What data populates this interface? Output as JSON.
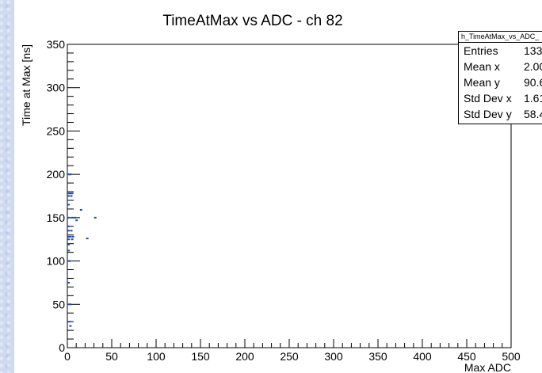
{
  "chart_data": {
    "type": "scatter",
    "title": "TimeAtMax vs ADC - ch 82",
    "xlabel": "Max ADC",
    "ylabel": "Time at Max [ns]",
    "xlim": [
      0,
      500
    ],
    "ylim": [
      0,
      350
    ],
    "x_ticks": [
      0,
      50,
      100,
      150,
      200,
      250,
      300,
      350,
      400,
      450,
      500
    ],
    "y_ticks": [
      0,
      50,
      100,
      150,
      200,
      250,
      300,
      350
    ],
    "grid": false,
    "marker_color": "#1f4fa8",
    "points": [
      {
        "x": 1,
        "y": 200
      },
      {
        "x": 2,
        "y": 200
      },
      {
        "x": 3,
        "y": 200
      },
      {
        "x": 1,
        "y": 178
      },
      {
        "x": 3,
        "y": 178
      },
      {
        "x": 5,
        "y": 178
      },
      {
        "x": 1,
        "y": 175
      },
      {
        "x": 4,
        "y": 175
      },
      {
        "x": 1,
        "y": 165
      },
      {
        "x": 15,
        "y": 159
      },
      {
        "x": 1,
        "y": 150
      },
      {
        "x": 5,
        "y": 150
      },
      {
        "x": 8,
        "y": 150
      },
      {
        "x": 31,
        "y": 150
      },
      {
        "x": 10,
        "y": 147
      },
      {
        "x": 1,
        "y": 140
      },
      {
        "x": 1,
        "y": 135
      },
      {
        "x": 4,
        "y": 135
      },
      {
        "x": 1,
        "y": 128
      },
      {
        "x": 3,
        "y": 128
      },
      {
        "x": 6,
        "y": 128
      },
      {
        "x": 1,
        "y": 125
      },
      {
        "x": 5,
        "y": 125
      },
      {
        "x": 22,
        "y": 126
      },
      {
        "x": 1,
        "y": 119
      },
      {
        "x": 1,
        "y": 112
      },
      {
        "x": 1,
        "y": 100
      },
      {
        "x": 2,
        "y": 100
      },
      {
        "x": 1,
        "y": 75
      },
      {
        "x": 1,
        "y": 50
      },
      {
        "x": 3,
        "y": 50
      },
      {
        "x": 2,
        "y": 30
      },
      {
        "x": 3,
        "y": 25
      }
    ]
  },
  "stats": {
    "name": "h_TimeAtMax_vs_ADC_",
    "rows": [
      {
        "label": "Entries",
        "value": "133"
      },
      {
        "label": "Mean x",
        "value": "2.00"
      },
      {
        "label": "Mean y",
        "value": "90.6"
      },
      {
        "label": "Std Dev x",
        "value": "1.61"
      },
      {
        "label": "Std Dev y",
        "value": "58.4"
      }
    ]
  }
}
